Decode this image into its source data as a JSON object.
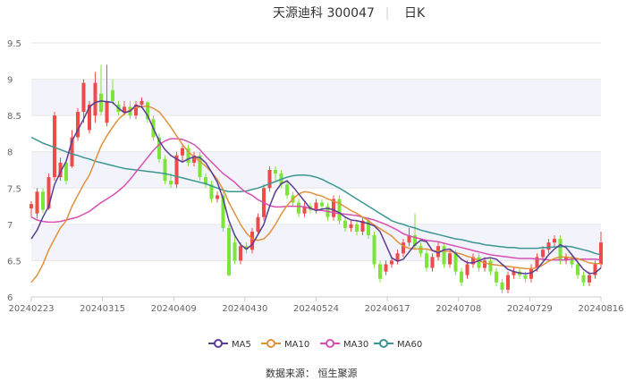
{
  "chart_data": {
    "type": "candlestick",
    "title": "天源迪科 300047",
    "period": "日K",
    "source": "数据来源： 恒生聚源",
    "ylim": [
      6,
      9.5
    ],
    "yticks": [
      "6",
      "6.5",
      "7",
      "7.5",
      "8",
      "8.5",
      "9",
      "9.5"
    ],
    "xticks": [
      "20240223",
      "20240315",
      "20240409",
      "20240430",
      "20240524",
      "20240617",
      "20240708",
      "20240729",
      "20240816"
    ],
    "grid": "horizontal",
    "legend_position": "bottom",
    "colors": {
      "up": "#ee4b4b",
      "down": "#7ee33a",
      "ma5": "#5a3d93",
      "ma10": "#e0913c",
      "ma30": "#d84fb2",
      "ma60": "#3b9692"
    },
    "legend": [
      "MA5",
      "MA10",
      "MA30",
      "MA60"
    ],
    "ma5": [
      6.8,
      6.92,
      7.1,
      7.25,
      7.55,
      7.72,
      7.87,
      8.15,
      8.3,
      8.45,
      8.62,
      8.68,
      8.7,
      8.69,
      8.68,
      8.6,
      8.54,
      8.56,
      8.64,
      8.62,
      8.5,
      8.32,
      8.15,
      8.03,
      7.95,
      7.9,
      7.86,
      7.9,
      7.93,
      7.92,
      7.85,
      7.72,
      7.58,
      7.35,
      7.05,
      6.85,
      6.72,
      6.66,
      6.72,
      6.86,
      7.0,
      7.25,
      7.45,
      7.56,
      7.6,
      7.52,
      7.42,
      7.32,
      7.22,
      7.19,
      7.21,
      7.22,
      7.2,
      7.16,
      7.1,
      7.06,
      7.05,
      7.03,
      7.01,
      6.98,
      6.9,
      6.72,
      6.54,
      6.49,
      6.52,
      6.62,
      6.72,
      6.78,
      6.76,
      6.64,
      6.61,
      6.65,
      6.66,
      6.6,
      6.52,
      6.47,
      6.47,
      6.5,
      6.53,
      6.54,
      6.52,
      6.45,
      6.38,
      6.35,
      6.33,
      6.32,
      6.33,
      6.38,
      6.48,
      6.58,
      6.66,
      6.72,
      6.68,
      6.58,
      6.48,
      6.38,
      6.32,
      6.33,
      6.4
    ],
    "ma10": [
      6.2,
      6.3,
      6.45,
      6.65,
      6.8,
      6.95,
      7.05,
      7.25,
      7.4,
      7.55,
      7.68,
      7.88,
      8.08,
      8.22,
      8.34,
      8.45,
      8.52,
      8.58,
      8.61,
      8.62,
      8.63,
      8.6,
      8.55,
      8.45,
      8.34,
      8.22,
      8.1,
      8.0,
      7.93,
      7.87,
      7.8,
      7.72,
      7.62,
      7.48,
      7.3,
      7.15,
      7.0,
      6.88,
      6.8,
      6.78,
      6.8,
      6.88,
      7.0,
      7.14,
      7.26,
      7.35,
      7.42,
      7.45,
      7.44,
      7.41,
      7.39,
      7.35,
      7.32,
      7.29,
      7.24,
      7.19,
      7.15,
      7.1,
      7.05,
      6.99,
      6.94,
      6.89,
      6.84,
      6.76,
      6.7,
      6.67,
      6.66,
      6.66,
      6.66,
      6.64,
      6.63,
      6.63,
      6.63,
      6.61,
      6.59,
      6.56,
      6.54,
      6.5,
      6.47,
      6.45,
      6.44,
      6.43,
      6.42,
      6.41,
      6.4,
      6.39,
      6.39,
      6.4,
      6.44,
      6.49,
      6.53,
      6.55,
      6.55,
      6.54,
      6.53,
      6.5,
      6.47,
      6.46,
      6.46
    ],
    "ma30": [
      7.1,
      7.06,
      7.04,
      7.03,
      7.03,
      7.04,
      7.06,
      7.08,
      7.1,
      7.14,
      7.18,
      7.24,
      7.3,
      7.35,
      7.4,
      7.46,
      7.53,
      7.62,
      7.72,
      7.82,
      7.92,
      8.02,
      8.1,
      8.15,
      8.18,
      8.18,
      8.17,
      8.14,
      8.1,
      8.03,
      7.94,
      7.86,
      7.78,
      7.7,
      7.64,
      7.58,
      7.5,
      7.44,
      7.4,
      7.34,
      7.3,
      7.26,
      7.24,
      7.24,
      7.25,
      7.25,
      7.25,
      7.24,
      7.22,
      7.2,
      7.19,
      7.18,
      7.16,
      7.15,
      7.14,
      7.13,
      7.12,
      7.1,
      7.08,
      7.06,
      7.03,
      7.0,
      6.96,
      6.92,
      6.87,
      6.84,
      6.82,
      6.8,
      6.78,
      6.77,
      6.76,
      6.74,
      6.72,
      6.7,
      6.68,
      6.66,
      6.64,
      6.62,
      6.6,
      6.58,
      6.57,
      6.56,
      6.55,
      6.54,
      6.53,
      6.53,
      6.53,
      6.52,
      6.52,
      6.51,
      6.51,
      6.51,
      6.51,
      6.52,
      6.52,
      6.52,
      6.52,
      6.52,
      6.51
    ],
    "ma60": [
      8.2,
      8.16,
      8.12,
      8.09,
      8.06,
      8.03,
      8.0,
      7.97,
      7.95,
      7.92,
      7.9,
      7.87,
      7.85,
      7.83,
      7.81,
      7.79,
      7.77,
      7.76,
      7.75,
      7.74,
      7.73,
      7.72,
      7.71,
      7.7,
      7.68,
      7.66,
      7.64,
      7.62,
      7.6,
      7.58,
      7.56,
      7.53,
      7.5,
      7.47,
      7.45,
      7.45,
      7.45,
      7.46,
      7.48,
      7.5,
      7.53,
      7.56,
      7.59,
      7.62,
      7.65,
      7.67,
      7.68,
      7.68,
      7.67,
      7.65,
      7.62,
      7.58,
      7.54,
      7.5,
      7.45,
      7.4,
      7.35,
      7.3,
      7.25,
      7.2,
      7.15,
      7.1,
      7.05,
      7.02,
      7.0,
      6.97,
      6.95,
      6.92,
      6.9,
      6.88,
      6.86,
      6.84,
      6.82,
      6.8,
      6.79,
      6.77,
      6.75,
      6.74,
      6.72,
      6.71,
      6.7,
      6.69,
      6.68,
      6.68,
      6.67,
      6.67,
      6.67,
      6.67,
      6.68,
      6.68,
      6.69,
      6.69,
      6.7,
      6.69,
      6.67,
      6.65,
      6.63,
      6.6,
      6.58
    ],
    "candles": [
      [
        7.22,
        7.28,
        7.1,
        7.32
      ],
      [
        7.15,
        7.45,
        7.08,
        7.5
      ],
      [
        7.45,
        7.2,
        7.15,
        7.5
      ],
      [
        7.22,
        7.65,
        7.2,
        7.7
      ],
      [
        7.65,
        8.5,
        7.6,
        8.55
      ],
      [
        7.65,
        7.85,
        7.6,
        7.92
      ],
      [
        7.85,
        7.6,
        7.55,
        7.9
      ],
      [
        7.8,
        8.2,
        7.78,
        8.3
      ],
      [
        8.2,
        8.55,
        8.15,
        8.6
      ],
      [
        8.55,
        8.95,
        8.4,
        9.0
      ],
      [
        8.3,
        8.65,
        8.25,
        8.7
      ],
      [
        8.5,
        8.95,
        8.4,
        9.1
      ],
      [
        8.8,
        8.55,
        8.5,
        9.2
      ],
      [
        8.4,
        8.7,
        8.35,
        9.2
      ],
      [
        8.85,
        8.7,
        8.65,
        9.0
      ],
      [
        8.65,
        8.55,
        8.5,
        8.7
      ],
      [
        8.55,
        8.62,
        8.5,
        8.7
      ],
      [
        8.62,
        8.5,
        8.45,
        8.7
      ],
      [
        8.5,
        8.65,
        8.45,
        8.7
      ],
      [
        8.65,
        8.7,
        8.6,
        8.75
      ],
      [
        8.68,
        8.45,
        8.4,
        8.7
      ],
      [
        8.45,
        8.2,
        8.15,
        8.5
      ],
      [
        8.2,
        7.9,
        7.85,
        8.25
      ],
      [
        7.9,
        7.6,
        7.55,
        7.95
      ],
      [
        7.6,
        7.55,
        7.5,
        7.7
      ],
      [
        7.55,
        7.95,
        7.5,
        8.0
      ],
      [
        7.95,
        8.05,
        7.85,
        8.1
      ],
      [
        8.05,
        7.85,
        7.8,
        8.1
      ],
      [
        7.85,
        7.95,
        7.8,
        8.0
      ],
      [
        7.95,
        7.65,
        7.6,
        8.0
      ],
      [
        7.65,
        7.55,
        7.5,
        7.7
      ],
      [
        7.55,
        7.35,
        7.3,
        7.6
      ],
      [
        7.35,
        7.4,
        7.3,
        7.45
      ],
      [
        7.4,
        6.95,
        6.9,
        7.45
      ],
      [
        6.95,
        6.3,
        6.28,
        7.0
      ],
      [
        6.75,
        6.5,
        6.45,
        6.85
      ],
      [
        6.5,
        6.7,
        6.45,
        6.75
      ],
      [
        6.7,
        6.65,
        6.6,
        6.75
      ],
      [
        6.65,
        6.9,
        6.6,
        6.95
      ],
      [
        6.9,
        7.1,
        6.85,
        7.15
      ],
      [
        7.1,
        7.5,
        7.05,
        7.55
      ],
      [
        7.5,
        7.75,
        7.45,
        7.8
      ],
      [
        7.75,
        7.7,
        7.6,
        7.8
      ],
      [
        7.7,
        7.55,
        7.5,
        7.75
      ],
      [
        7.55,
        7.4,
        7.35,
        7.6
      ],
      [
        7.4,
        7.3,
        7.25,
        7.45
      ],
      [
        7.3,
        7.15,
        7.1,
        7.35
      ],
      [
        7.15,
        7.25,
        7.1,
        7.3
      ],
      [
        7.25,
        7.2,
        7.15,
        7.3
      ],
      [
        7.2,
        7.3,
        7.15,
        7.35
      ],
      [
        7.3,
        7.25,
        7.2,
        7.35
      ],
      [
        7.25,
        7.1,
        7.05,
        7.3
      ],
      [
        7.1,
        7.35,
        7.05,
        7.4
      ],
      [
        7.35,
        7.05,
        7.0,
        7.4
      ],
      [
        7.05,
        6.95,
        6.9,
        7.1
      ],
      [
        6.95,
        7.0,
        6.9,
        7.05
      ],
      [
        7.0,
        6.9,
        6.85,
        7.05
      ],
      [
        6.9,
        7.05,
        6.85,
        7.1
      ],
      [
        7.05,
        6.85,
        6.8,
        7.1
      ],
      [
        6.85,
        6.45,
        6.4,
        6.9
      ],
      [
        6.45,
        6.25,
        6.2,
        6.5
      ],
      [
        6.35,
        6.45,
        6.3,
        6.5
      ],
      [
        6.45,
        6.5,
        6.4,
        6.55
      ],
      [
        6.5,
        6.6,
        6.45,
        6.65
      ],
      [
        6.6,
        6.75,
        6.55,
        6.8
      ],
      [
        6.75,
        6.85,
        6.7,
        6.95
      ],
      [
        6.85,
        6.7,
        6.65,
        7.15
      ],
      [
        6.7,
        6.6,
        6.55,
        6.75
      ],
      [
        6.6,
        6.4,
        6.35,
        6.65
      ],
      [
        6.4,
        6.55,
        6.35,
        6.6
      ],
      [
        6.55,
        6.7,
        6.5,
        6.75
      ],
      [
        6.7,
        6.45,
        6.4,
        6.75
      ],
      [
        6.45,
        6.6,
        6.4,
        6.65
      ],
      [
        6.6,
        6.35,
        6.3,
        6.65
      ],
      [
        6.35,
        6.2,
        6.15,
        6.4
      ],
      [
        6.3,
        6.45,
        6.25,
        6.5
      ],
      [
        6.45,
        6.55,
        6.4,
        6.6
      ],
      [
        6.55,
        6.4,
        6.35,
        6.6
      ],
      [
        6.4,
        6.5,
        6.35,
        6.55
      ],
      [
        6.5,
        6.35,
        6.3,
        6.55
      ],
      [
        6.35,
        6.2,
        6.15,
        6.4
      ],
      [
        6.2,
        6.1,
        6.05,
        6.25
      ],
      [
        6.1,
        6.3,
        6.05,
        6.35
      ],
      [
        6.3,
        6.35,
        6.25,
        6.4
      ],
      [
        6.35,
        6.3,
        6.25,
        6.4
      ],
      [
        6.3,
        6.25,
        6.2,
        6.35
      ],
      [
        6.25,
        6.4,
        6.2,
        6.45
      ],
      [
        6.4,
        6.55,
        6.35,
        6.6
      ],
      [
        6.55,
        6.65,
        6.5,
        6.7
      ],
      [
        6.65,
        6.75,
        6.6,
        6.8
      ],
      [
        6.75,
        6.8,
        6.7,
        6.85
      ],
      [
        6.8,
        6.5,
        6.45,
        6.85
      ],
      [
        6.5,
        6.55,
        6.45,
        6.6
      ],
      [
        6.55,
        6.45,
        6.4,
        6.6
      ],
      [
        6.45,
        6.3,
        6.25,
        6.5
      ],
      [
        6.3,
        6.2,
        6.15,
        6.35
      ],
      [
        6.2,
        6.3,
        6.15,
        6.35
      ],
      [
        6.3,
        6.45,
        6.25,
        6.5
      ],
      [
        6.45,
        6.75,
        6.4,
        6.9
      ]
    ]
  }
}
